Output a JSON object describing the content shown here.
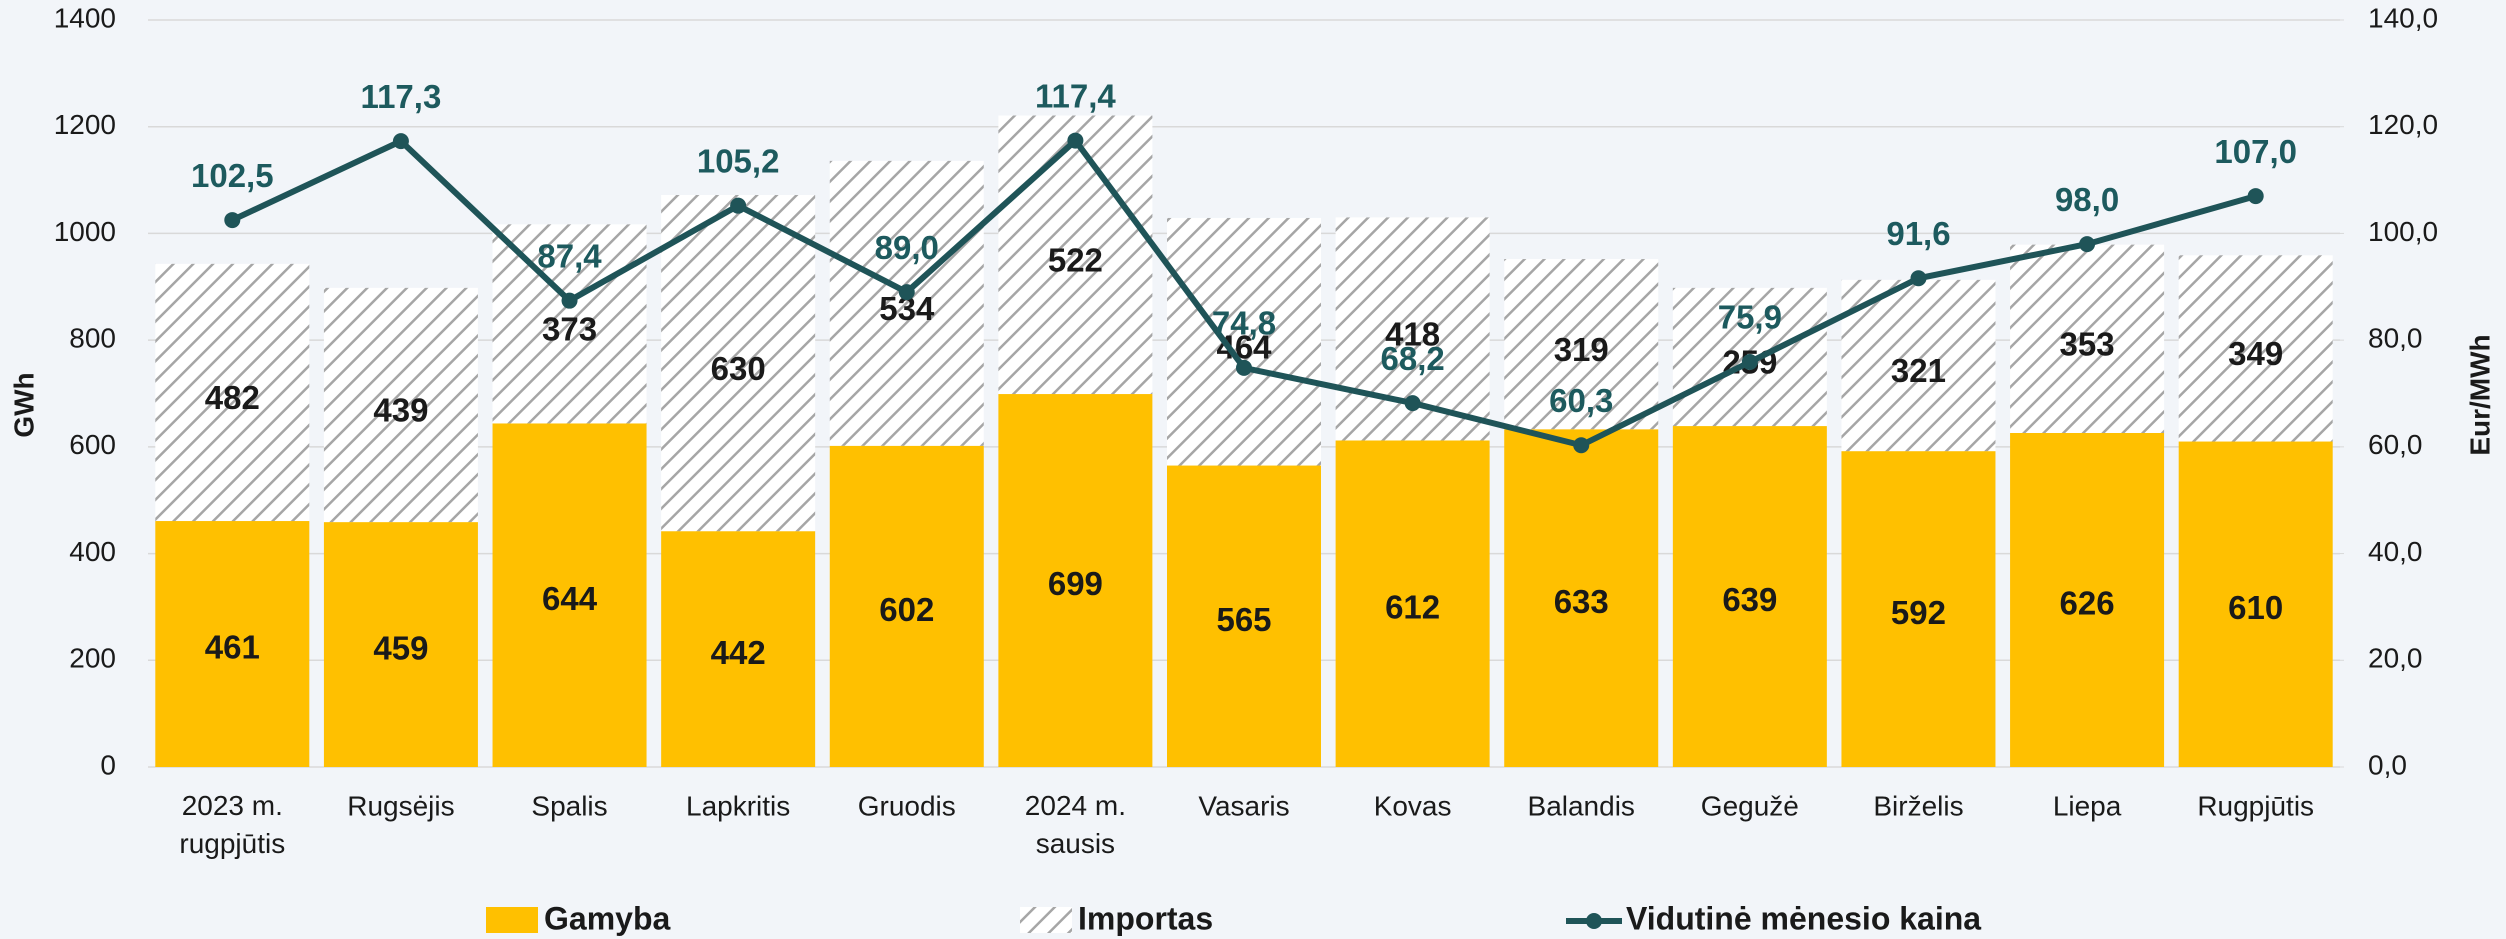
{
  "chart_data": {
    "type": "bar",
    "categories": [
      "2023 m. rugpjūtis",
      "Rugsėjis",
      "Spalis",
      "Lapkritis",
      "Gruodis",
      "2024 m. sausis",
      "Vasaris",
      "Kovas",
      "Balandis",
      "Gegužė",
      "Birželis",
      "Liepa",
      "Rugpjūtis"
    ],
    "series": [
      {
        "name": "Gamyba",
        "color": "#ffc000",
        "values": [
          461,
          459,
          644,
          442,
          602,
          699,
          565,
          612,
          633,
          639,
          592,
          626,
          610
        ]
      },
      {
        "name": "Importas",
        "color": "#a6a6a6",
        "values": [
          482,
          439,
          373,
          630,
          534,
          522,
          464,
          418,
          319,
          259,
          321,
          353,
          349
        ]
      },
      {
        "name": "Vidutinė mėnesio kaina",
        "color": "#1f5458",
        "axis": "y2",
        "values": [
          102.5,
          117.3,
          87.4,
          105.2,
          89.0,
          117.4,
          74.8,
          68.2,
          60.3,
          75.9,
          91.6,
          98.0,
          107.0
        ],
        "value_labels": [
          "102,5",
          "117,3",
          "87,4",
          "105,2",
          "89,0",
          "117,4",
          "74,8",
          "68,2",
          "60,3",
          "75,9",
          "91,6",
          "98,0",
          "107,0"
        ]
      }
    ],
    "ylabel": "GWh",
    "y2label": "Eur/MWh",
    "ylim": [
      0,
      1400
    ],
    "yticks": [
      0,
      200,
      400,
      600,
      800,
      1000,
      1200,
      1400
    ],
    "y2lim": [
      0,
      140
    ],
    "y2ticks": [
      {
        "value": 0,
        "label": "0,0"
      },
      {
        "value": 20,
        "label": "20,0"
      },
      {
        "value": 40,
        "label": "40,0"
      },
      {
        "value": 60,
        "label": "60,0"
      },
      {
        "value": 80,
        "label": "80,0"
      },
      {
        "value": 100,
        "label": "100,0"
      },
      {
        "value": 120,
        "label": "120,0"
      },
      {
        "value": 140,
        "label": "140,0"
      }
    ],
    "grid": true,
    "legend": "bottom"
  }
}
